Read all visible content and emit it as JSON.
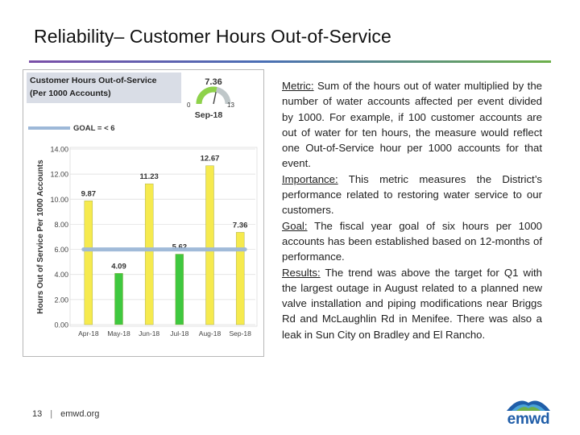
{
  "slide": {
    "title": "Reliability– Customer Hours Out-of-Service",
    "page_number": "13",
    "footer_separator": "|",
    "footer_site": "emwd.org",
    "logo_text": "emwd"
  },
  "gauge": {
    "value_text": "7.36",
    "min_label": "0",
    "max_label": "13",
    "value": 7.36,
    "period": "Sep-18"
  },
  "chart_data": {
    "type": "bar",
    "title": "Customer Hours Out-of-Service",
    "subtitle": "(Per 1000 Accounts)",
    "ylabel": "Hours Out of Service Per 1000 Accounts",
    "xlabel": "",
    "categories": [
      "Apr-18",
      "May-18",
      "Jun-18",
      "Jul-18",
      "Aug-18",
      "Sep-18"
    ],
    "values": [
      9.87,
      4.09,
      11.23,
      5.62,
      12.67,
      7.36
    ],
    "value_labels": [
      "9.87",
      "4.09",
      "11.23",
      "5.62",
      "12.67",
      "7.36"
    ],
    "bar_colors": [
      "#f6ea4e",
      "#3fc83f",
      "#f6ea4e",
      "#3fc83f",
      "#f6ea4e",
      "#f6ea4e"
    ],
    "goal": 6,
    "goal_legend": "GOAL = < 6",
    "goal_color": "#9db8d8",
    "ylim": [
      0,
      14
    ],
    "yticks": [
      "0.00",
      "2.00",
      "4.00",
      "6.00",
      "8.00",
      "10.00",
      "12.00",
      "14.00"
    ],
    "grid": true
  },
  "text": {
    "metric_label": "Metric:",
    "metric_body": " Sum of the hours out of water multiplied by the number of water accounts affected per event divided by 1000.  For example, if 100 customer accounts are out of water for ten hours, the measure would reflect one Out-of-Service hour per 1000 accounts for that event.",
    "importance_label": "Importance:",
    "importance_body": " This metric measures the District’s performance related to restoring water service to our customers.",
    "goal_label": "Goal:",
    "goal_body": " The fiscal year goal of six hours per 1000 accounts has been established based on 12-months of performance.",
    "results_label": "Results:",
    "results_body": " The trend was above the target for Q1 with the largest outage in August related to a planned new valve installation and piping modifications near Briggs Rd and McLaughlin Rd in Menifee. There was also a leak in Sun City on Bradley and El Rancho."
  },
  "colors": {
    "accent_purple": "#7b4fa8",
    "accent_green": "#6db04a",
    "brand_blue": "#1f5da8"
  }
}
